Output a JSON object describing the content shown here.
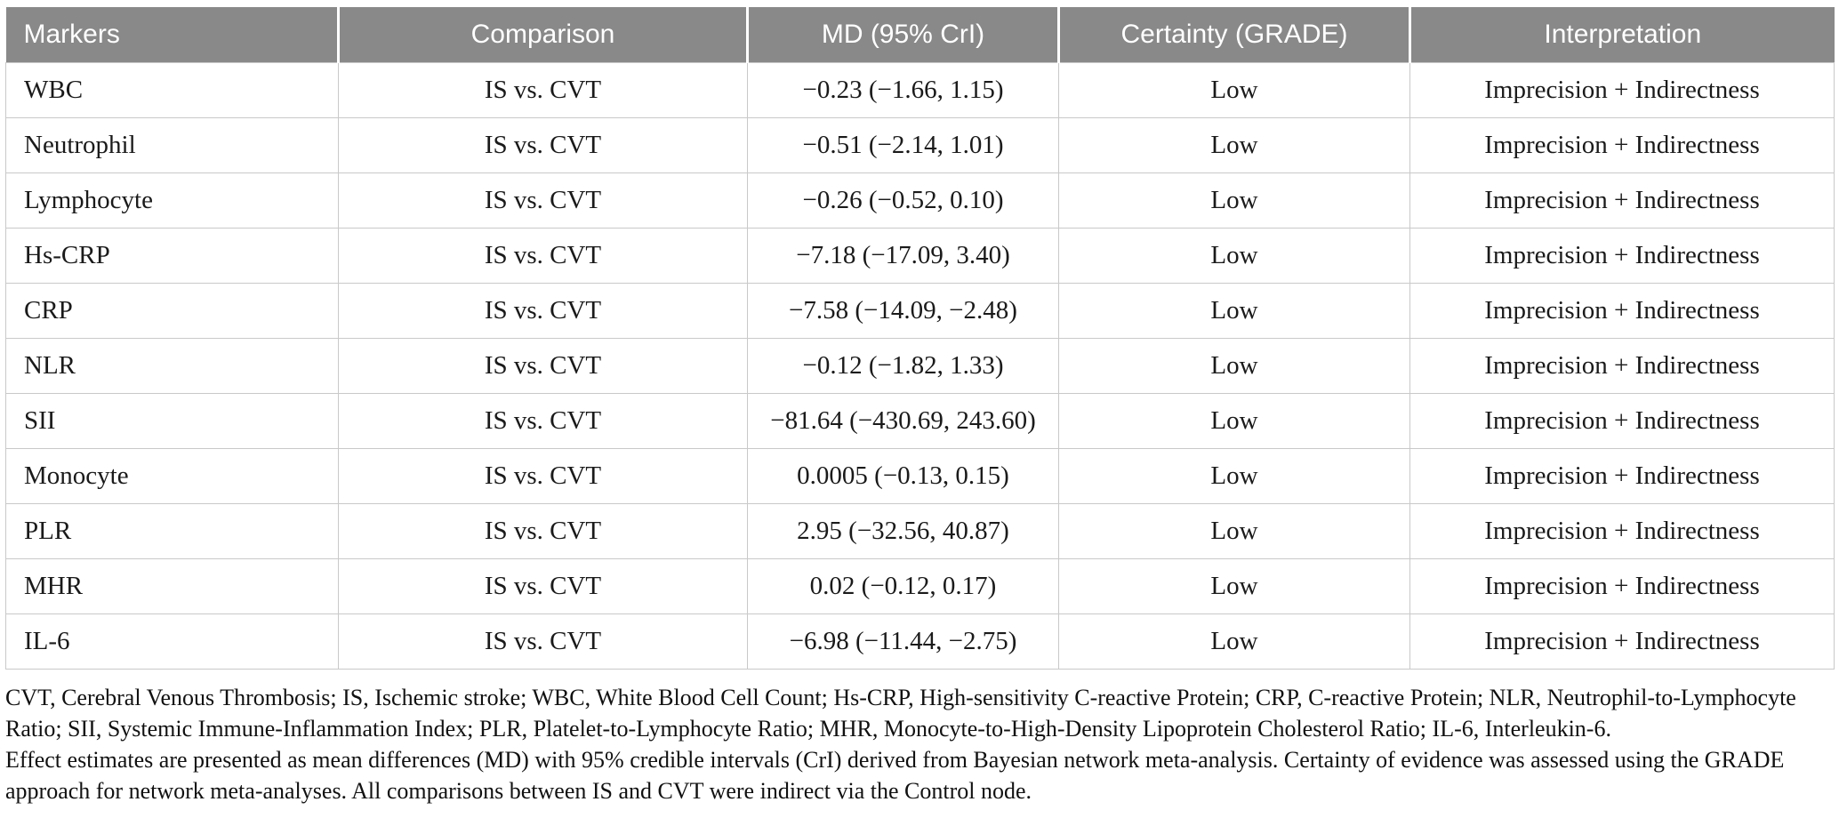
{
  "colors": {
    "header_bg": "#898989",
    "header_text": "#ffffff",
    "cell_border": "#c9c9c9",
    "body_text": "#1a1a1a"
  },
  "table": {
    "columns": [
      "Markers",
      "Comparison",
      "MD (95% CrI)",
      "Certainty (GRADE)",
      "Interpretation"
    ],
    "rows": [
      {
        "marker": "WBC",
        "comparison": "IS vs. CVT",
        "md": "−0.23 (−1.66, 1.15)",
        "certainty": "Low",
        "interpretation": "Imprecision + Indirectness"
      },
      {
        "marker": "Neutrophil",
        "comparison": "IS vs. CVT",
        "md": "−0.51 (−2.14, 1.01)",
        "certainty": "Low",
        "interpretation": "Imprecision + Indirectness"
      },
      {
        "marker": "Lymphocyte",
        "comparison": "IS vs. CVT",
        "md": "−0.26 (−0.52, 0.10)",
        "certainty": "Low",
        "interpretation": "Imprecision + Indirectness"
      },
      {
        "marker": "Hs-CRP",
        "comparison": "IS vs. CVT",
        "md": "−7.18 (−17.09, 3.40)",
        "certainty": "Low",
        "interpretation": "Imprecision + Indirectness"
      },
      {
        "marker": "CRP",
        "comparison": "IS vs. CVT",
        "md": "−7.58 (−14.09, −2.48)",
        "certainty": "Low",
        "interpretation": "Imprecision + Indirectness"
      },
      {
        "marker": "NLR",
        "comparison": "IS vs. CVT",
        "md": "−0.12 (−1.82, 1.33)",
        "certainty": "Low",
        "interpretation": "Imprecision + Indirectness"
      },
      {
        "marker": "SII",
        "comparison": "IS vs. CVT",
        "md": "−81.64 (−430.69, 243.60)",
        "certainty": "Low",
        "interpretation": "Imprecision + Indirectness"
      },
      {
        "marker": "Monocyte",
        "comparison": "IS vs. CVT",
        "md": "0.0005 (−0.13, 0.15)",
        "certainty": "Low",
        "interpretation": "Imprecision + Indirectness"
      },
      {
        "marker": "PLR",
        "comparison": "IS vs. CVT",
        "md": "2.95 (−32.56, 40.87)",
        "certainty": "Low",
        "interpretation": "Imprecision + Indirectness"
      },
      {
        "marker": "MHR",
        "comparison": "IS vs. CVT",
        "md": "0.02 (−0.12, 0.17)",
        "certainty": "Low",
        "interpretation": "Imprecision + Indirectness"
      },
      {
        "marker": "IL-6",
        "comparison": "IS vs. CVT",
        "md": "−6.98 (−11.44, −2.75)",
        "certainty": "Low",
        "interpretation": "Imprecision + Indirectness"
      }
    ]
  },
  "footnotes": [
    "CVT, Cerebral Venous Thrombosis; IS, Ischemic stroke; WBC, White Blood Cell Count; Hs-CRP, High-sensitivity C-reactive Protein; CRP, C-reactive Protein; NLR, Neutrophil-to-Lymphocyte Ratio; SII, Systemic Immune-Inflammation Index; PLR, Platelet-to-Lymphocyte Ratio; MHR, Monocyte-to-High-Density Lipoprotein Cholesterol Ratio; IL-6, Interleukin-6.",
    "Effect estimates are presented as mean differences (MD) with 95% credible intervals (CrI) derived from Bayesian network meta-analysis. Certainty of evidence was assessed using the GRADE approach for network meta-analyses. All comparisons between IS and CVT were indirect via the Control node."
  ]
}
